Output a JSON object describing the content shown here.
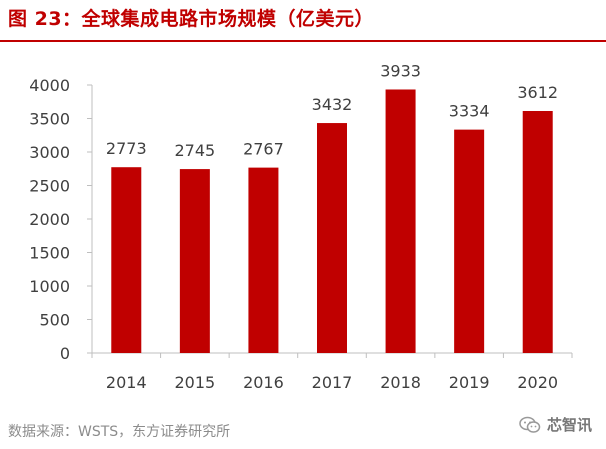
{
  "title": "图 23：全球集成电路市场规模（亿美元）",
  "source": "数据来源：WSTS，东方证券研究所",
  "watermark": {
    "text": "芯智讯",
    "icon": "wechat-icon"
  },
  "colors": {
    "bar": "#c00000",
    "title": "#c00000",
    "axis": "#bfbfbf",
    "text": "#404040"
  },
  "chart_data": {
    "type": "bar",
    "categories": [
      "2014",
      "2015",
      "2016",
      "2017",
      "2018",
      "2019",
      "2020"
    ],
    "values": [
      2773,
      2745,
      2767,
      3432,
      3933,
      3334,
      3612
    ],
    "data_labels": [
      "2773",
      "2745",
      "2767",
      "3432",
      "3933",
      "3334",
      "3612"
    ],
    "yticks": [
      "0",
      "500",
      "1000",
      "1500",
      "2000",
      "2500",
      "3000",
      "3500",
      "4000"
    ],
    "ylim": [
      0,
      4000
    ],
    "grid": false,
    "legend": "none"
  }
}
